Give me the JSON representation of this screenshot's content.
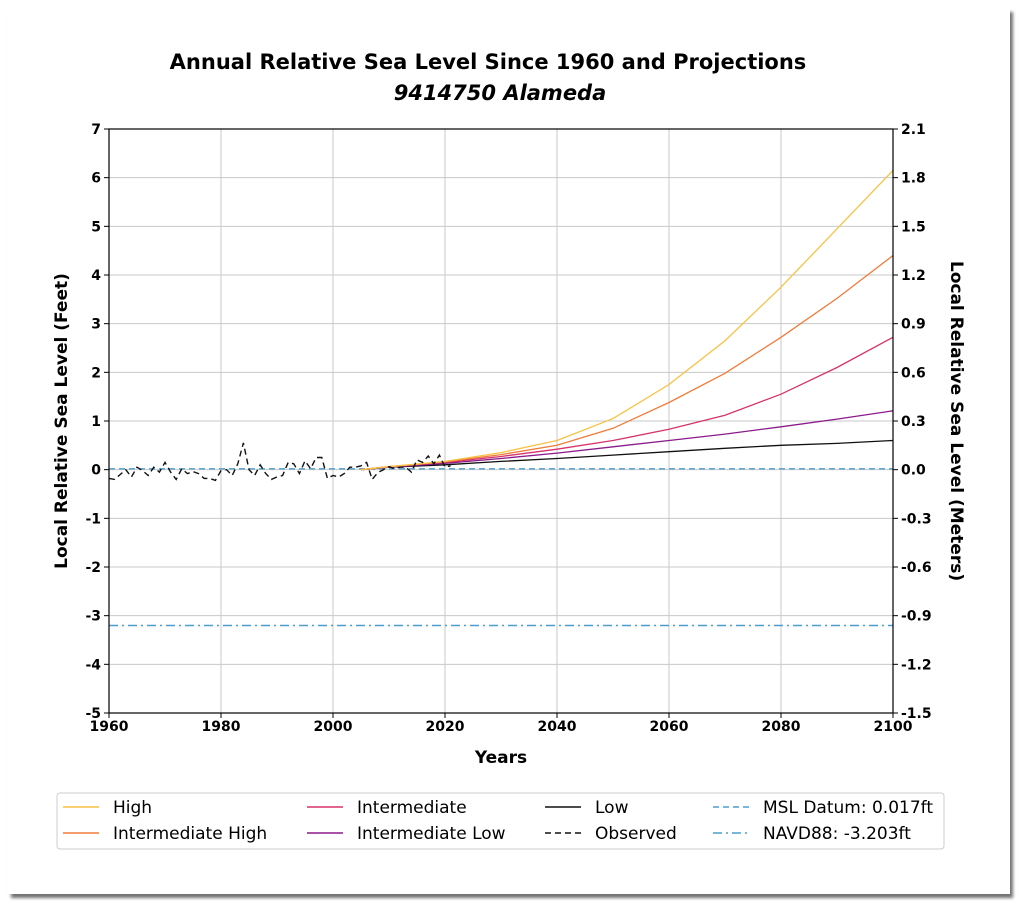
{
  "chart_data": {
    "type": "line",
    "title": "Annual Relative Sea Level Since 1960 and Projections",
    "subtitle": "9414750 Alameda",
    "xlabel": "Years",
    "ylabel_left": "Local Relative Sea Level (Feet)",
    "ylabel_right": "Local Relative Sea Level (Meters)",
    "xlim": [
      1960,
      2100
    ],
    "ylim_left": [
      -5,
      7
    ],
    "ylim_right": [
      -1.5,
      2.1
    ],
    "x_ticks": [
      "1960",
      "1980",
      "2000",
      "2020",
      "2040",
      "2060",
      "2080",
      "2100"
    ],
    "y_ticks_left": [
      "7",
      "6",
      "5",
      "4",
      "3",
      "2",
      "1",
      "0",
      "-1",
      "-2",
      "-3",
      "-4",
      "-5"
    ],
    "y_ticks_right": [
      "2.1",
      "1.8",
      "1.5",
      "1.2",
      "0.9",
      "0.6",
      "0.3",
      "0.0",
      "-0.3",
      "-0.6",
      "-0.9",
      "-1.2",
      "-1.5"
    ],
    "grid": true,
    "legend_position": "bottom",
    "series": [
      {
        "name": "High",
        "color": "#f7c244",
        "style": "solid",
        "x": [
          2005,
          2010,
          2020,
          2030,
          2040,
          2050,
          2060,
          2070,
          2080,
          2090,
          2100
        ],
        "values": [
          0.0,
          0.06,
          0.17,
          0.35,
          0.6,
          1.05,
          1.75,
          2.65,
          3.75,
          4.95,
          6.15
        ]
      },
      {
        "name": "Intermediate High",
        "color": "#f07b3a",
        "style": "solid",
        "x": [
          2005,
          2010,
          2020,
          2030,
          2040,
          2050,
          2060,
          2070,
          2080,
          2090,
          2100
        ],
        "values": [
          0.0,
          0.06,
          0.16,
          0.31,
          0.5,
          0.85,
          1.38,
          1.98,
          2.72,
          3.52,
          4.4
        ]
      },
      {
        "name": "Intermediate",
        "color": "#d6336c",
        "style": "solid",
        "x": [
          2005,
          2010,
          2020,
          2030,
          2040,
          2050,
          2060,
          2070,
          2080,
          2090,
          2100
        ],
        "values": [
          0.0,
          0.06,
          0.15,
          0.27,
          0.42,
          0.6,
          0.83,
          1.12,
          1.55,
          2.1,
          2.72
        ]
      },
      {
        "name": "Intermediate Low",
        "color": "#8b1a8c",
        "style": "solid",
        "x": [
          2005,
          2010,
          2020,
          2030,
          2040,
          2050,
          2060,
          2070,
          2080,
          2090,
          2100
        ],
        "values": [
          0.0,
          0.05,
          0.13,
          0.23,
          0.34,
          0.47,
          0.6,
          0.73,
          0.88,
          1.04,
          1.21
        ]
      },
      {
        "name": "Low",
        "color": "#111111",
        "style": "solid",
        "x": [
          2005,
          2010,
          2020,
          2030,
          2040,
          2050,
          2060,
          2070,
          2080,
          2090,
          2100
        ],
        "values": [
          0.0,
          0.05,
          0.1,
          0.17,
          0.23,
          0.3,
          0.37,
          0.44,
          0.5,
          0.54,
          0.6
        ]
      },
      {
        "name": "Observed",
        "color": "#111111",
        "style": "dashed",
        "x": [
          1960,
          1961,
          1962,
          1963,
          1964,
          1965,
          1966,
          1967,
          1968,
          1969,
          1970,
          1971,
          1972,
          1973,
          1974,
          1975,
          1976,
          1977,
          1978,
          1979,
          1980,
          1981,
          1982,
          1983,
          1984,
          1985,
          1986,
          1987,
          1988,
          1989,
          1990,
          1991,
          1992,
          1993,
          1994,
          1995,
          1996,
          1997,
          1998,
          1999,
          2000,
          2001,
          2002,
          2003,
          2004,
          2005,
          2006,
          2007,
          2008,
          2009,
          2010,
          2011,
          2012,
          2013,
          2014,
          2015,
          2016,
          2017,
          2018,
          2019,
          2020,
          2021
        ],
        "values": [
          -0.18,
          -0.2,
          -0.1,
          0.0,
          -0.15,
          0.05,
          -0.02,
          -0.12,
          0.05,
          -0.05,
          0.15,
          -0.05,
          -0.2,
          0.02,
          -0.08,
          -0.04,
          -0.08,
          -0.18,
          -0.18,
          -0.22,
          -0.02,
          0.0,
          -0.12,
          0.12,
          0.55,
          0.0,
          -0.12,
          0.1,
          -0.08,
          -0.2,
          -0.15,
          -0.12,
          0.15,
          0.12,
          -0.08,
          0.18,
          0.02,
          0.25,
          0.25,
          -0.18,
          -0.12,
          -0.15,
          -0.08,
          0.05,
          0.05,
          0.08,
          0.15,
          -0.2,
          -0.06,
          0.0,
          0.06,
          0.02,
          0.05,
          0.05,
          -0.05,
          0.2,
          0.15,
          0.28,
          0.12,
          0.3,
          0.05,
          0.08
        ]
      },
      {
        "name": "MSL Datum: 0.017ft",
        "color": "#4a9fd0",
        "style": "dashed",
        "x": [
          1960,
          2100
        ],
        "values": [
          0.017,
          0.017
        ]
      },
      {
        "name": "NAVD88: -3.203ft",
        "color": "#4a9fd0",
        "style": "dashdot",
        "x": [
          1960,
          2100
        ],
        "values": [
          -3.203,
          -3.203
        ]
      }
    ]
  }
}
